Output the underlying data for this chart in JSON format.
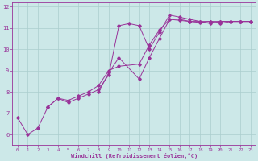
{
  "title": "",
  "xlabel": "Windchill (Refroidissement éolien,°C)",
  "ylabel": "",
  "xlim": [
    -0.5,
    23.5
  ],
  "ylim": [
    5.5,
    12.2
  ],
  "yticks": [
    6,
    7,
    8,
    9,
    10,
    11,
    12
  ],
  "xticks": [
    0,
    1,
    2,
    3,
    4,
    5,
    6,
    7,
    8,
    9,
    10,
    11,
    12,
    13,
    14,
    15,
    16,
    17,
    18,
    19,
    20,
    21,
    22,
    23
  ],
  "bg_color": "#cce8e8",
  "line_color": "#993399",
  "grid_color": "#aacece",
  "series": [
    {
      "x": [
        0,
        1,
        2,
        3,
        4,
        5,
        6,
        7,
        8,
        9,
        10,
        11,
        12,
        13,
        14,
        15,
        16,
        17,
        18,
        19,
        20,
        21,
        22,
        23
      ],
      "y": [
        6.8,
        6.0,
        6.3,
        7.3,
        7.7,
        7.5,
        7.7,
        7.9,
        8.1,
        8.8,
        11.1,
        11.2,
        11.1,
        10.0,
        10.8,
        11.6,
        11.5,
        11.4,
        11.3,
        11.2,
        11.3,
        11.3,
        11.3,
        11.3
      ]
    },
    {
      "x": [
        3,
        4,
        5,
        6,
        7,
        8,
        9,
        10,
        12,
        13,
        14,
        15,
        16,
        17,
        18,
        19,
        20,
        21,
        22,
        23
      ],
      "y": [
        7.3,
        7.7,
        7.6,
        7.8,
        8.0,
        8.3,
        9.0,
        9.2,
        9.3,
        10.2,
        10.9,
        11.4,
        11.35,
        11.3,
        11.25,
        11.3,
        11.2,
        11.3,
        11.3,
        11.3
      ]
    },
    {
      "x": [
        8,
        9,
        10,
        12,
        13,
        14,
        15,
        16,
        17,
        18,
        19,
        20,
        21,
        22,
        23
      ],
      "y": [
        8.0,
        8.9,
        9.6,
        8.6,
        9.6,
        10.5,
        11.4,
        11.4,
        11.3,
        11.3,
        11.3,
        11.3,
        11.3,
        11.3,
        11.3
      ]
    }
  ]
}
